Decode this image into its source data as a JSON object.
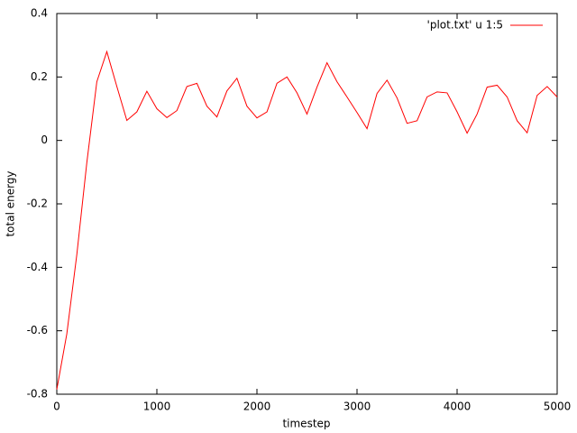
{
  "chart_data": {
    "type": "line",
    "xlabel": "timestep",
    "ylabel": "total energy",
    "x": [
      0,
      100,
      200,
      300,
      400,
      500,
      600,
      700,
      800,
      900,
      1000,
      1100,
      1200,
      1300,
      1400,
      1500,
      1600,
      1700,
      1800,
      1900,
      2000,
      2100,
      2200,
      2300,
      2400,
      2500,
      2600,
      2700,
      2800,
      2900,
      3000,
      3100,
      3200,
      3300,
      3400,
      3500,
      3600,
      3700,
      3800,
      3900,
      4000,
      4100,
      4200,
      4300,
      4400,
      4500,
      4600,
      4700,
      4800,
      4900,
      5000
    ],
    "series": [
      {
        "name": "'plot.txt' u 1:5",
        "color": "#ff0000",
        "values": [
          -0.785,
          -0.61,
          -0.36,
          -0.07,
          0.185,
          0.28,
          0.17,
          0.063,
          0.09,
          0.155,
          0.1,
          0.072,
          0.094,
          0.17,
          0.18,
          0.108,
          0.074,
          0.156,
          0.196,
          0.108,
          0.071,
          0.09,
          0.18,
          0.2,
          0.15,
          0.083,
          0.168,
          0.245,
          0.185,
          0.137,
          0.088,
          0.037,
          0.148,
          0.19,
          0.134,
          0.054,
          0.062,
          0.137,
          0.153,
          0.15,
          0.09,
          0.023,
          0.083,
          0.168,
          0.174,
          0.137,
          0.062,
          0.024,
          0.142,
          0.17,
          0.137
        ]
      }
    ],
    "xlim": [
      0,
      5000
    ],
    "xticks": [
      0,
      1000,
      2000,
      3000,
      4000,
      5000
    ],
    "ylim": [
      -0.8,
      0.4
    ],
    "yticks": [
      -0.8,
      -0.6,
      -0.4,
      -0.2,
      0,
      0.2,
      0.4
    ],
    "legend": "top-right",
    "grid": false
  }
}
